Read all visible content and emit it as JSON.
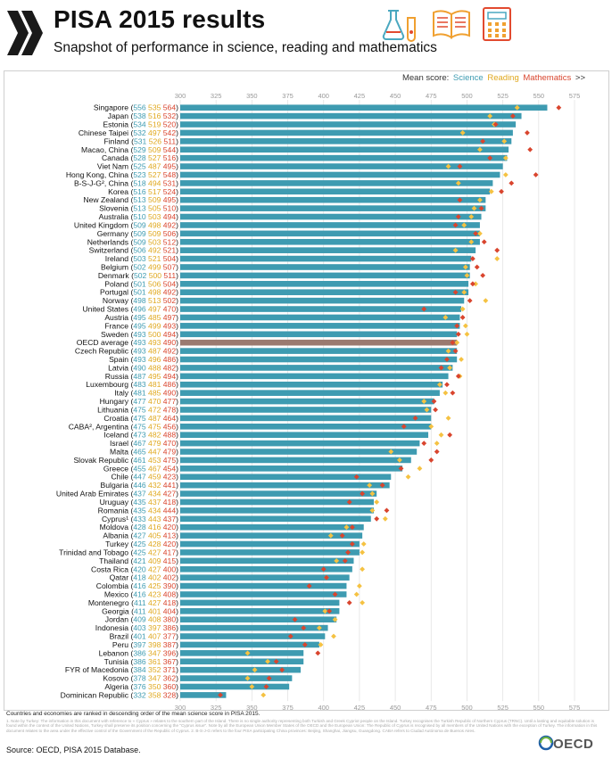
{
  "header": {
    "title": "PISA 2015 results",
    "subtitle": "Snapshot of performance in science, reading and mathematics",
    "icons": [
      "flask-icon",
      "open-book-icon",
      "calculator-icon"
    ]
  },
  "legend": {
    "prefix": "Mean score:",
    "items": [
      "Science",
      "Reading",
      "Mathematics"
    ],
    "suffix": ">>"
  },
  "colors": {
    "science": "#3e9bb1",
    "reading": "#f5c242",
    "mathematics": "#d9452e",
    "oecd_bar": "#9a7a70",
    "brand_dark": "#1a1a1a"
  },
  "chart_data": {
    "type": "bar",
    "title": "PISA 2015 results",
    "subtitle": "Snapshot of performance in science, reading and mathematics",
    "xlim": [
      300,
      575
    ],
    "x_ticks": [
      "300",
      "325",
      "350",
      "375",
      "400",
      "425",
      "450",
      "475",
      "500",
      "525",
      "550",
      "575"
    ],
    "grid": true,
    "legend_position": "top-right",
    "series": [
      {
        "name": "Science",
        "marker": "bar"
      },
      {
        "name": "Reading",
        "marker": "diamond"
      },
      {
        "name": "Mathematics",
        "marker": "diamond"
      }
    ],
    "rows": [
      {
        "label": "Singapore",
        "science": 556,
        "reading": 535,
        "math": 564
      },
      {
        "label": "Japan",
        "science": 538,
        "reading": 516,
        "math": 532
      },
      {
        "label": "Estonia",
        "science": 534,
        "reading": 519,
        "math": 520
      },
      {
        "label": "Chinese Taipei",
        "science": 532,
        "reading": 497,
        "math": 542
      },
      {
        "label": "Finland",
        "science": 531,
        "reading": 526,
        "math": 511
      },
      {
        "label": "Macao, China",
        "science": 529,
        "reading": 509,
        "math": 544
      },
      {
        "label": "Canada",
        "science": 528,
        "reading": 527,
        "math": 516
      },
      {
        "label": "Viet Nam",
        "science": 525,
        "reading": 487,
        "math": 495
      },
      {
        "label": "Hong Kong, China",
        "science": 523,
        "reading": 527,
        "math": 548
      },
      {
        "label": "B-S-J-G², China",
        "science": 518,
        "reading": 494,
        "math": 531
      },
      {
        "label": "Korea",
        "science": 516,
        "reading": 517,
        "math": 524
      },
      {
        "label": "New Zealand",
        "science": 513,
        "reading": 509,
        "math": 495
      },
      {
        "label": "Slovenia",
        "science": 513,
        "reading": 505,
        "math": 510
      },
      {
        "label": "Australia",
        "science": 510,
        "reading": 503,
        "math": 494
      },
      {
        "label": "United Kingdom",
        "science": 509,
        "reading": 498,
        "math": 492
      },
      {
        "label": "Germany",
        "science": 509,
        "reading": 509,
        "math": 506
      },
      {
        "label": "Netherlands",
        "science": 509,
        "reading": 503,
        "math": 512
      },
      {
        "label": "Switzerland",
        "science": 506,
        "reading": 492,
        "math": 521
      },
      {
        "label": "Ireland",
        "science": 503,
        "reading": 521,
        "math": 504
      },
      {
        "label": "Belgium",
        "science": 502,
        "reading": 499,
        "math": 507
      },
      {
        "label": "Denmark",
        "science": 502,
        "reading": 500,
        "math": 511
      },
      {
        "label": "Poland",
        "science": 501,
        "reading": 506,
        "math": 504
      },
      {
        "label": "Portugal",
        "science": 501,
        "reading": 498,
        "math": 492
      },
      {
        "label": "Norway",
        "science": 498,
        "reading": 513,
        "math": 502
      },
      {
        "label": "United States",
        "science": 496,
        "reading": 497,
        "math": 470
      },
      {
        "label": "Austria",
        "science": 495,
        "reading": 485,
        "math": 497
      },
      {
        "label": "France",
        "science": 495,
        "reading": 499,
        "math": 493
      },
      {
        "label": "Sweden",
        "science": 493,
        "reading": 500,
        "math": 494
      },
      {
        "label": "OECD average",
        "science": 493,
        "reading": 493,
        "math": 490,
        "highlight": true
      },
      {
        "label": "Czech Republic",
        "science": 493,
        "reading": 487,
        "math": 492
      },
      {
        "label": "Spain",
        "science": 493,
        "reading": 496,
        "math": 486
      },
      {
        "label": "Latvia",
        "science": 490,
        "reading": 488,
        "math": 482
      },
      {
        "label": "Russia",
        "science": 487,
        "reading": 495,
        "math": 494
      },
      {
        "label": "Luxembourg",
        "science": 483,
        "reading": 481,
        "math": 486
      },
      {
        "label": "Italy",
        "science": 481,
        "reading": 485,
        "math": 490
      },
      {
        "label": "Hungary",
        "science": 477,
        "reading": 470,
        "math": 477
      },
      {
        "label": "Lithuania",
        "science": 475,
        "reading": 472,
        "math": 478
      },
      {
        "label": "Croatia",
        "science": 475,
        "reading": 487,
        "math": 464
      },
      {
        "label": "CABA², Argentina",
        "science": 475,
        "reading": 475,
        "math": 456
      },
      {
        "label": "Iceland",
        "science": 473,
        "reading": 482,
        "math": 488
      },
      {
        "label": "Israel",
        "science": 467,
        "reading": 479,
        "math": 470
      },
      {
        "label": "Malta",
        "science": 465,
        "reading": 447,
        "math": 479
      },
      {
        "label": "Slovak Republic",
        "science": 461,
        "reading": 453,
        "math": 475
      },
      {
        "label": "Greece",
        "science": 455,
        "reading": 467,
        "math": 454
      },
      {
        "label": "Chile",
        "science": 447,
        "reading": 459,
        "math": 423
      },
      {
        "label": "Bulgaria",
        "science": 446,
        "reading": 432,
        "math": 441
      },
      {
        "label": "United Arab Emirates",
        "science": 437,
        "reading": 434,
        "math": 427
      },
      {
        "label": "Uruguay",
        "science": 435,
        "reading": 437,
        "math": 418
      },
      {
        "label": "Romania",
        "science": 435,
        "reading": 434,
        "math": 444
      },
      {
        "label": "Cyprus¹",
        "science": 433,
        "reading": 443,
        "math": 437
      },
      {
        "label": "Moldova",
        "science": 428,
        "reading": 416,
        "math": 420
      },
      {
        "label": "Albania",
        "science": 427,
        "reading": 405,
        "math": 413
      },
      {
        "label": "Turkey",
        "science": 425,
        "reading": 428,
        "math": 420
      },
      {
        "label": "Trinidad and Tobago",
        "science": 425,
        "reading": 427,
        "math": 417
      },
      {
        "label": "Thailand",
        "science": 421,
        "reading": 409,
        "math": 415
      },
      {
        "label": "Costa Rica",
        "science": 420,
        "reading": 427,
        "math": 400
      },
      {
        "label": "Qatar",
        "science": 418,
        "reading": 402,
        "math": 402
      },
      {
        "label": "Colombia",
        "science": 416,
        "reading": 425,
        "math": 390
      },
      {
        "label": "Mexico",
        "science": 416,
        "reading": 423,
        "math": 408
      },
      {
        "label": "Montenegro",
        "science": 411,
        "reading": 427,
        "math": 418
      },
      {
        "label": "Georgia",
        "science": 411,
        "reading": 401,
        "math": 404
      },
      {
        "label": "Jordan",
        "science": 409,
        "reading": 408,
        "math": 380
      },
      {
        "label": "Indonesia",
        "science": 403,
        "reading": 397,
        "math": 386
      },
      {
        "label": "Brazil",
        "science": 401,
        "reading": 407,
        "math": 377
      },
      {
        "label": "Peru",
        "science": 397,
        "reading": 398,
        "math": 387
      },
      {
        "label": "Lebanon",
        "science": 386,
        "reading": 347,
        "math": 396
      },
      {
        "label": "Tunisia",
        "science": 386,
        "reading": 361,
        "math": 367
      },
      {
        "label": "FYR of Macedonia",
        "science": 384,
        "reading": 352,
        "math": 371
      },
      {
        "label": "Kosovo",
        "science": 378,
        "reading": 347,
        "math": 362
      },
      {
        "label": "Algeria",
        "science": 376,
        "reading": 350,
        "math": 360
      },
      {
        "label": "Dominican Republic",
        "science": 332,
        "reading": 358,
        "math": 328
      }
    ]
  },
  "notes": {
    "ranking": "Countries and economies are ranked in descending order of the mean science score in PISA 2015.",
    "footnote": "1. Note by Turkey: The information in this document with reference to « Cyprus » relates to the southern part of the Island. There is no single authority representing both Turkish and Greek Cypriot people on the Island. Turkey recognises the Turkish Republic of Northern Cyprus (TRNC). Until a lasting and equitable solution is found within the context of the United Nations, Turkey shall preserve its position concerning the \"Cyprus issue\". Note by all the European Union Member States of the OECD and the European Union: The Republic of Cyprus is recognised by all members of the United Nations with the exception of Turkey. The information in this document relates to the area under the effective control of the Government of the Republic of Cyprus. 2. B-S-J-G refers to the four PISA participating China provinces: Beijing, Shanghai, Jiangsu, Guangdong. CABA refers to Ciudad Autónoma de Buenos Aires.",
    "source": "Source: OECD, PISA 2015 Database."
  },
  "brand": {
    "name": "OECD"
  }
}
